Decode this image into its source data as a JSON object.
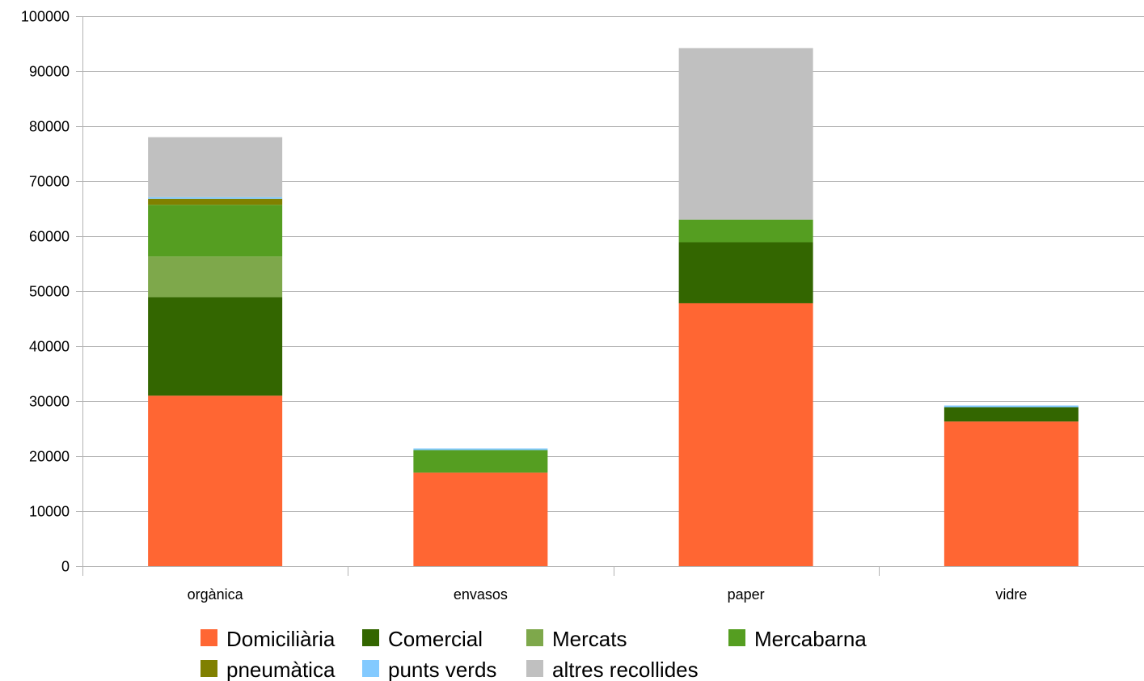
{
  "chart_data": {
    "type": "bar",
    "stacked": true,
    "title": "",
    "xlabel": "",
    "ylabel": "",
    "ylim": [
      0,
      100000
    ],
    "y_ticks": [
      0,
      10000,
      20000,
      30000,
      40000,
      50000,
      60000,
      70000,
      80000,
      90000,
      100000
    ],
    "grid": true,
    "legend_position": "bottom",
    "categories": [
      "orgànica",
      "envasos",
      "paper",
      "vidre"
    ],
    "series": [
      {
        "name": "Domiciliària",
        "color": "#ff6633",
        "values": [
          31000,
          17000,
          47800,
          26300
        ]
      },
      {
        "name": "Comercial",
        "color": "#336600",
        "values": [
          17900,
          0,
          11100,
          2600
        ]
      },
      {
        "name": "Mercats",
        "color": "#7ea84b",
        "values": [
          7400,
          0,
          0,
          0
        ]
      },
      {
        "name": "Mercabarna",
        "color": "#559e21",
        "values": [
          9400,
          4100,
          4100,
          0
        ]
      },
      {
        "name": "pneumàtica",
        "color": "#808000",
        "values": [
          1100,
          0,
          0,
          0
        ]
      },
      {
        "name": "punts verds",
        "color": "#83caff",
        "values": [
          300,
          300,
          0,
          300
        ]
      },
      {
        "name": "altres recollides",
        "color": "#c0c0c0",
        "values": [
          10900,
          0,
          31200,
          0
        ]
      }
    ]
  }
}
